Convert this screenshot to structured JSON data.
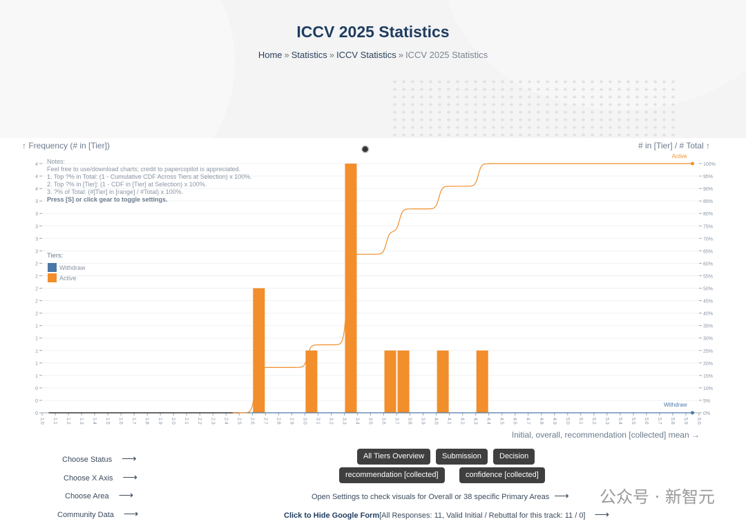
{
  "header": {
    "title": "ICCV 2025 Statistics",
    "breadcrumb": [
      "Home",
      "Statistics",
      "ICCV Statistics",
      "ICCV 2025 Statistics"
    ],
    "separator": "»"
  },
  "settings_icon": "gear-icon",
  "chart_data": {
    "type": "bar",
    "ylabel_left": "↑ Frequency (# in [Tier])",
    "ylabel_right": "# in [Tier] / # Total ↑",
    "xlabel": "Initial, overall, recommendation [collected] mean →",
    "xlim": [
      1.0,
      6.0
    ],
    "x_tick_step": 0.1,
    "ylim_left": [
      0,
      4
    ],
    "y_left_tick_step": 0.2,
    "ylim_right_percent": [
      0,
      100
    ],
    "y_right_tick_step_percent": 5,
    "grid": true,
    "bin_width": 0.1,
    "series": [
      {
        "name": "Withdraw",
        "color": "#4a78a8",
        "bins": [],
        "counts": []
      },
      {
        "name": "Active",
        "color": "#f28e2b",
        "bins": [
          2.6,
          3.0,
          3.3,
          3.6,
          3.7,
          4.0,
          4.3
        ],
        "counts": [
          2,
          1,
          4,
          1,
          1,
          1,
          1
        ]
      }
    ],
    "cdf_series": [
      {
        "name": "Active",
        "color": "#f28e2b",
        "end_percent": 100
      },
      {
        "name": "Withdraw",
        "color": "#4a78a8",
        "end_percent": 0
      }
    ],
    "notes": [
      "Notes:",
      "Feel free to use/download charts; credit to papercopilot is appreciated.",
      "1. Top ?% in Total: (1 - Cumulative CDF Across Tiers at Selection) x 100%.",
      "2. Top ?% in [Tier]: (1 - CDF in [Tier] at Selection) x 100%.",
      "3. ?% of Total: (#[Tier] in [range] / #Total) x 100%.",
      "Press [S] or click gear to toggle settings."
    ],
    "legend_title": "Tiers:",
    "legend_placement": "left"
  },
  "controls": {
    "left_links": [
      "Choose Status",
      "Choose X Axis",
      "Choose Area",
      "Community Data"
    ],
    "arrow": "⟶",
    "buttons_row1": [
      "All Tiers Overview",
      "Submission",
      "Decision"
    ],
    "buttons_row2": [
      "recommendation [collected]",
      "confidence [collected]"
    ],
    "settings_hint": "Open Settings to check visuals for Overall or 38 specific Primary Areas",
    "form_link": "Click to Hide Google Form",
    "form_stats": "[All Responses: 11, Valid Initial / Rebuttal for this track: 11 / 0]"
  },
  "watermark": "公众号 · 新智元"
}
